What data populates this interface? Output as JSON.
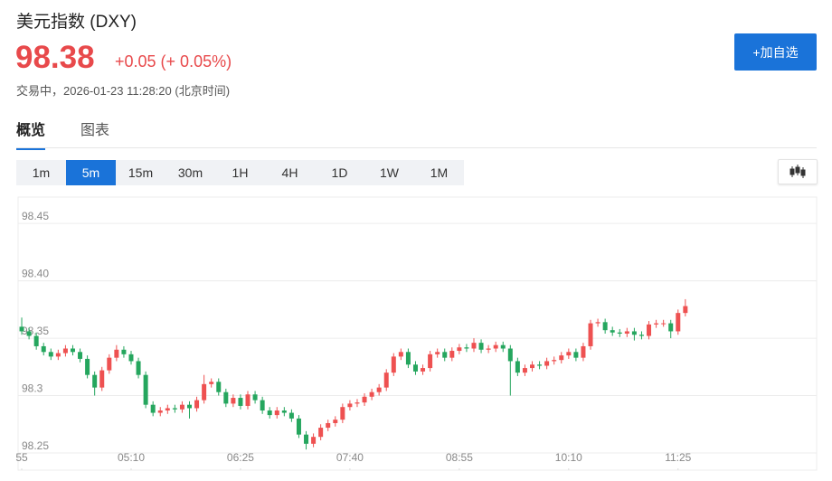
{
  "header": {
    "title": "美元指数 (DXY)",
    "price": "98.38",
    "change": "+0.05 (+ 0.05%)",
    "status": "交易中，2026-01-23 11:28:20 (北京时间)",
    "watch_button": "+加自选"
  },
  "tabs": {
    "items": [
      "概览",
      "图表"
    ],
    "active": 0
  },
  "intervals": {
    "items": [
      "1m",
      "5m",
      "15m",
      "30m",
      "1H",
      "4H",
      "1D",
      "1W",
      "1M"
    ],
    "active": 1
  },
  "chart_data": {
    "type": "candlestick",
    "up_color": "#ee5151",
    "down_color": "#25a65e",
    "grid": true,
    "ylim": [
      98.235,
      98.473
    ],
    "yticks": [
      98.25,
      98.3,
      {
        "value": 98.35,
        "label": "98.35"
      },
      {
        "value": 98.4,
        "label": "98.40"
      },
      98.45
    ],
    "xlim": [
      -0.5,
      109
    ],
    "xticks": [
      {
        "value": 0,
        "label": "55"
      },
      {
        "value": 15,
        "label": "05:10"
      },
      {
        "value": 30,
        "label": "06:25"
      },
      {
        "value": 45,
        "label": "07:40"
      },
      {
        "value": 60,
        "label": "08:55"
      },
      {
        "value": 75,
        "label": "10:10"
      },
      {
        "value": 90,
        "label": "11:25"
      }
    ],
    "x": [
      0,
      1,
      2,
      3,
      4,
      5,
      6,
      7,
      8,
      9,
      10,
      11,
      12,
      13,
      14,
      15,
      16,
      17,
      18,
      19,
      20,
      21,
      22,
      23,
      24,
      25,
      26,
      27,
      28,
      29,
      30,
      31,
      32,
      33,
      34,
      35,
      36,
      37,
      38,
      39,
      40,
      41,
      42,
      43,
      44,
      45,
      46,
      47,
      48,
      49,
      50,
      51,
      52,
      53,
      54,
      55,
      56,
      57,
      58,
      59,
      60,
      61,
      62,
      63,
      64,
      65,
      66,
      67,
      68,
      69,
      70,
      71,
      72,
      73,
      74,
      75,
      76,
      77,
      78,
      79,
      80,
      81,
      82,
      83,
      84,
      85,
      86,
      87,
      88,
      89,
      90,
      91
    ],
    "ohlc": [
      [
        98.36,
        98.368,
        98.353,
        98.356
      ],
      [
        98.356,
        98.359,
        98.349,
        98.352
      ],
      [
        98.352,
        98.355,
        98.34,
        98.343
      ],
      [
        98.343,
        98.346,
        98.335,
        98.338
      ],
      [
        98.338,
        98.341,
        98.331,
        98.334
      ],
      [
        98.334,
        98.34,
        98.331,
        98.337
      ],
      [
        98.337,
        98.344,
        98.334,
        98.341
      ],
      [
        98.341,
        98.344,
        98.335,
        98.338
      ],
      [
        98.338,
        98.341,
        98.329,
        98.332
      ],
      [
        98.332,
        98.335,
        98.315,
        98.318
      ],
      [
        98.318,
        98.321,
        98.3,
        98.307
      ],
      [
        98.307,
        98.325,
        98.304,
        98.322
      ],
      [
        98.322,
        98.336,
        98.319,
        98.333
      ],
      [
        98.333,
        98.344,
        98.33,
        98.34
      ],
      [
        98.34,
        98.343,
        98.333,
        98.336
      ],
      [
        98.336,
        98.339,
        98.327,
        98.33
      ],
      [
        98.33,
        98.333,
        98.315,
        98.318
      ],
      [
        98.318,
        98.321,
        98.289,
        98.292
      ],
      [
        98.292,
        98.295,
        98.282,
        98.285
      ],
      [
        98.285,
        98.29,
        98.282,
        98.287
      ],
      [
        98.287,
        98.292,
        98.284,
        98.289
      ],
      [
        98.289,
        98.292,
        98.285,
        98.288
      ],
      [
        98.288,
        98.295,
        98.285,
        98.292
      ],
      [
        98.292,
        98.295,
        98.28,
        98.289
      ],
      [
        98.289,
        98.299,
        98.286,
        98.296
      ],
      [
        98.296,
        98.318,
        98.293,
        98.31
      ],
      [
        98.31,
        98.315,
        98.307,
        98.312
      ],
      [
        98.312,
        98.315,
        98.3,
        98.303
      ],
      [
        98.303,
        98.306,
        98.29,
        98.293
      ],
      [
        98.293,
        98.301,
        98.29,
        98.298
      ],
      [
        98.298,
        98.301,
        98.288,
        98.291
      ],
      [
        98.291,
        98.304,
        98.288,
        98.301
      ],
      [
        98.301,
        98.304,
        98.293,
        98.296
      ],
      [
        98.296,
        98.299,
        98.284,
        98.287
      ],
      [
        98.287,
        98.29,
        98.28,
        98.283
      ],
      [
        98.283,
        98.29,
        98.28,
        98.287
      ],
      [
        98.287,
        98.29,
        98.282,
        98.285
      ],
      [
        98.285,
        98.288,
        98.277,
        98.28
      ],
      [
        98.28,
        98.283,
        98.263,
        98.266
      ],
      [
        98.266,
        98.269,
        98.253,
        98.258
      ],
      [
        98.258,
        98.267,
        98.255,
        98.264
      ],
      [
        98.264,
        98.275,
        98.261,
        98.272
      ],
      [
        98.272,
        98.279,
        98.269,
        98.276
      ],
      [
        98.276,
        98.282,
        98.273,
        98.279
      ],
      [
        98.279,
        98.293,
        98.276,
        98.29
      ],
      [
        98.29,
        98.296,
        98.287,
        98.293
      ],
      [
        98.293,
        98.297,
        98.29,
        98.294
      ],
      [
        98.294,
        98.302,
        98.291,
        98.299
      ],
      [
        98.299,
        98.306,
        98.296,
        98.303
      ],
      [
        98.303,
        98.31,
        98.3,
        98.307
      ],
      [
        98.307,
        98.323,
        98.304,
        98.32
      ],
      [
        98.32,
        98.337,
        98.317,
        98.334
      ],
      [
        98.334,
        98.341,
        98.331,
        98.338
      ],
      [
        98.338,
        98.341,
        98.324,
        98.327
      ],
      [
        98.327,
        98.33,
        98.318,
        98.321
      ],
      [
        98.321,
        98.327,
        98.318,
        98.324
      ],
      [
        98.324,
        98.339,
        98.321,
        98.336
      ],
      [
        98.336,
        98.341,
        98.333,
        98.338
      ],
      [
        98.338,
        98.341,
        98.33,
        98.333
      ],
      [
        98.333,
        98.342,
        98.33,
        98.339
      ],
      [
        98.339,
        98.345,
        98.336,
        98.342
      ],
      [
        98.342,
        98.345,
        98.338,
        98.341
      ],
      [
        98.341,
        98.35,
        98.338,
        98.346
      ],
      [
        98.346,
        98.349,
        98.337,
        98.34
      ],
      [
        98.34,
        98.344,
        98.337,
        98.341
      ],
      [
        98.341,
        98.347,
        98.338,
        98.344
      ],
      [
        98.344,
        98.347,
        98.338,
        98.341
      ],
      [
        98.341,
        98.344,
        98.3,
        98.33
      ],
      [
        98.33,
        98.333,
        98.317,
        98.32
      ],
      [
        98.32,
        98.327,
        98.317,
        98.324
      ],
      [
        98.324,
        98.33,
        98.321,
        98.327
      ],
      [
        98.327,
        98.33,
        98.323,
        98.326
      ],
      [
        98.326,
        98.333,
        98.323,
        98.33
      ],
      [
        98.33,
        98.334,
        98.327,
        98.331
      ],
      [
        98.331,
        98.338,
        98.328,
        98.335
      ],
      [
        98.335,
        98.341,
        98.332,
        98.338
      ],
      [
        98.338,
        98.341,
        98.33,
        98.333
      ],
      [
        98.333,
        98.346,
        98.33,
        98.343
      ],
      [
        98.343,
        98.366,
        98.34,
        98.363
      ],
      [
        98.363,
        98.367,
        98.36,
        98.364
      ],
      [
        98.364,
        98.367,
        98.354,
        98.357
      ],
      [
        98.357,
        98.36,
        98.352,
        98.355
      ],
      [
        98.355,
        98.358,
        98.351,
        98.354
      ],
      [
        98.354,
        98.359,
        98.351,
        98.356
      ],
      [
        98.356,
        98.359,
        98.348,
        98.353
      ],
      [
        98.353,
        98.356,
        98.349,
        98.352
      ],
      [
        98.352,
        98.365,
        98.349,
        98.362
      ],
      [
        98.362,
        98.366,
        98.359,
        98.363
      ],
      [
        98.363,
        98.366,
        98.36,
        98.363
      ],
      [
        98.363,
        98.366,
        98.35,
        98.356
      ],
      [
        98.356,
        98.375,
        98.353,
        98.372
      ],
      [
        98.372,
        98.384,
        98.369,
        98.378
      ]
    ]
  }
}
